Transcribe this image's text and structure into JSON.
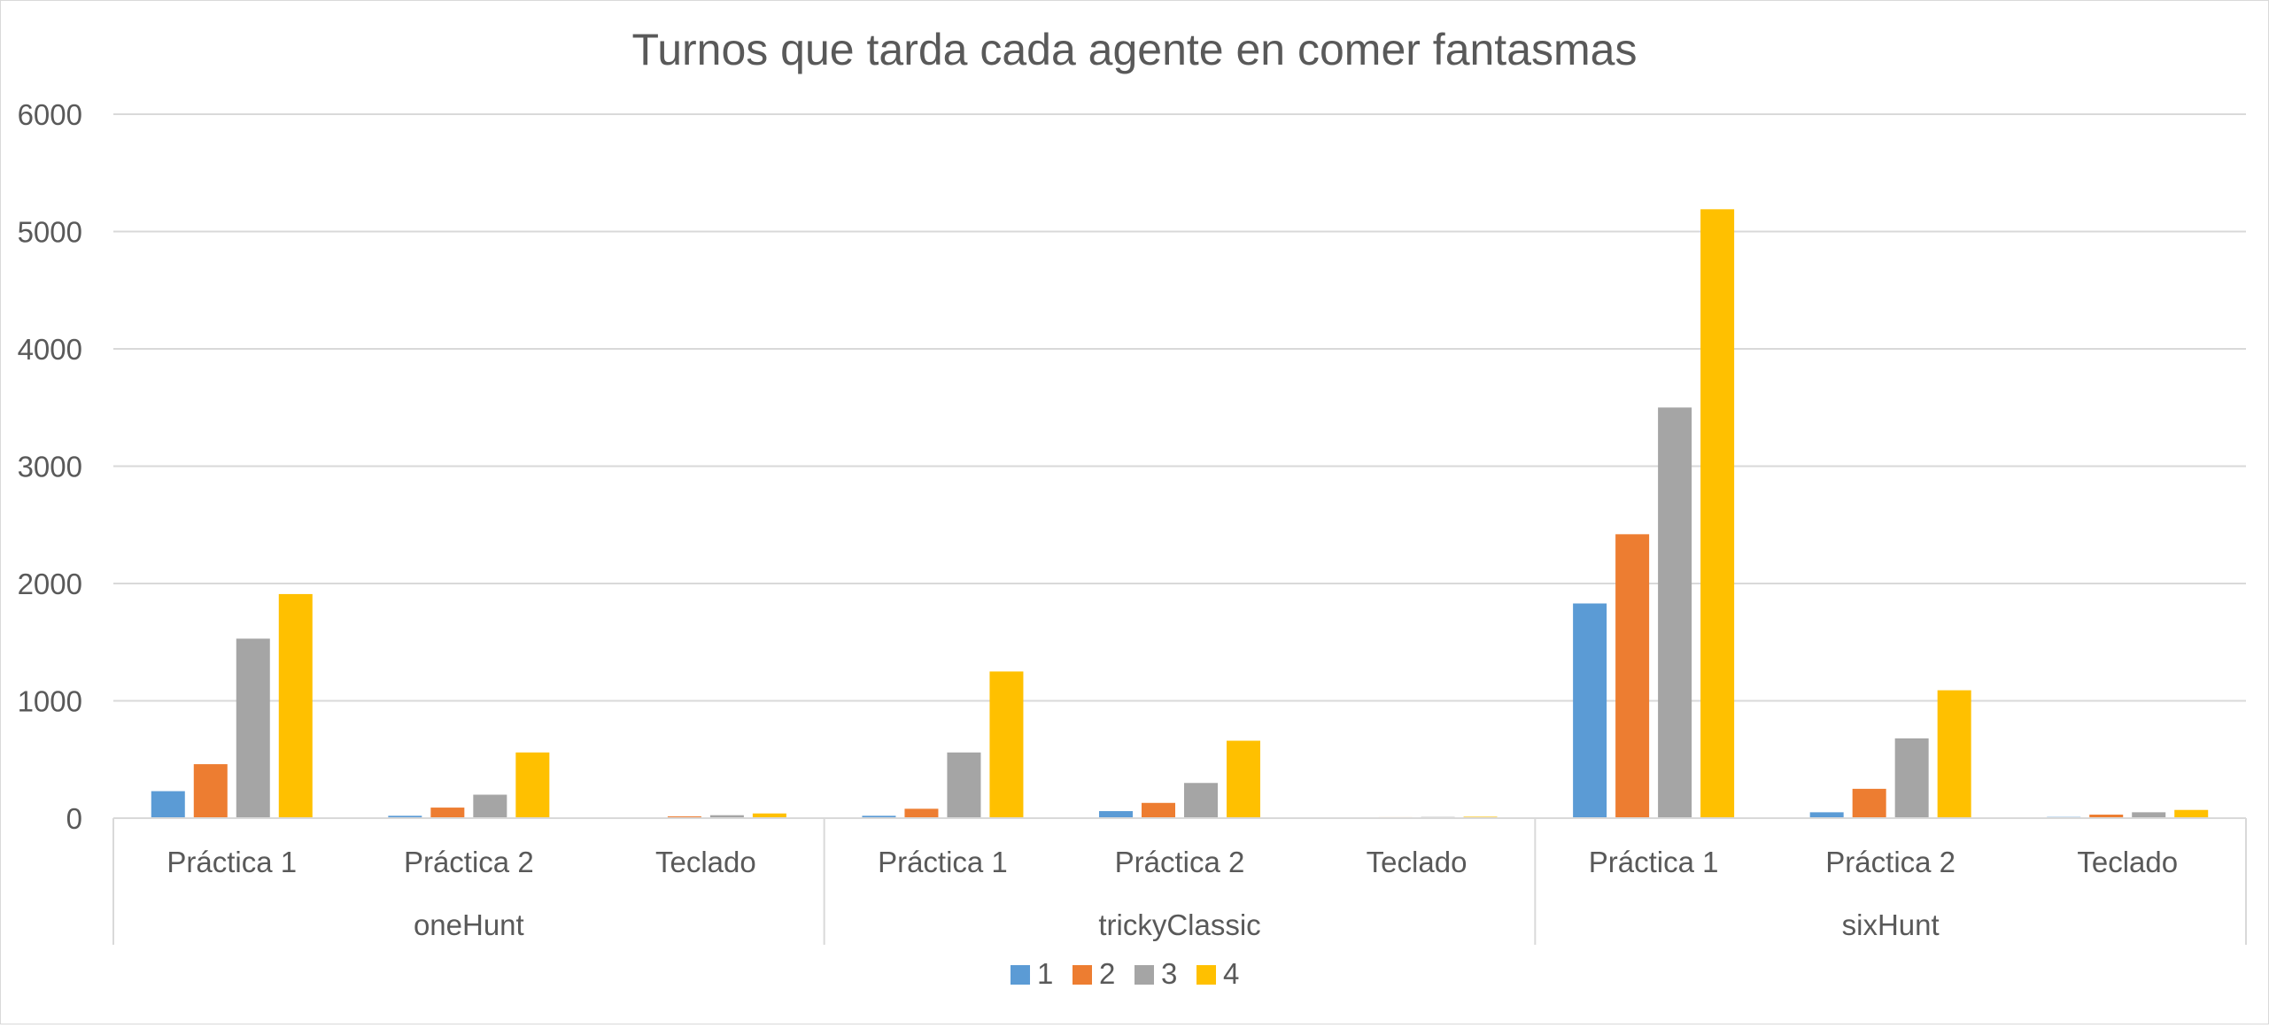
{
  "chart_data": {
    "type": "bar",
    "title": "Turnos que tarda cada agente en comer fantasmas",
    "xlabel": "",
    "ylabel": "",
    "ylim": [
      0,
      6000
    ],
    "yticks": [
      0,
      1000,
      2000,
      3000,
      4000,
      5000,
      6000
    ],
    "grid": true,
    "legend_position": "bottom",
    "groups": [
      {
        "label": "oneHunt",
        "categories": [
          "Práctica 1",
          "Práctica 2",
          "Teclado"
        ]
      },
      {
        "label": "trickyClassic",
        "categories": [
          "Práctica 1",
          "Práctica 2",
          "Teclado"
        ]
      },
      {
        "label": "sixHunt",
        "categories": [
          "Práctica 1",
          "Práctica 2",
          "Teclado"
        ]
      }
    ],
    "series": [
      {
        "name": "1",
        "color": "#5b9bd5",
        "values": [
          230,
          20,
          5,
          20,
          60,
          5,
          1830,
          50,
          10
        ]
      },
      {
        "name": "2",
        "color": "#ed7d31",
        "values": [
          460,
          90,
          15,
          80,
          130,
          8,
          2420,
          250,
          30
        ]
      },
      {
        "name": "3",
        "color": "#a5a5a5",
        "values": [
          1530,
          200,
          25,
          560,
          300,
          10,
          3500,
          680,
          50
        ]
      },
      {
        "name": "4",
        "color": "#ffc000",
        "values": [
          1910,
          560,
          40,
          1250,
          660,
          12,
          5190,
          1090,
          70
        ]
      }
    ]
  }
}
